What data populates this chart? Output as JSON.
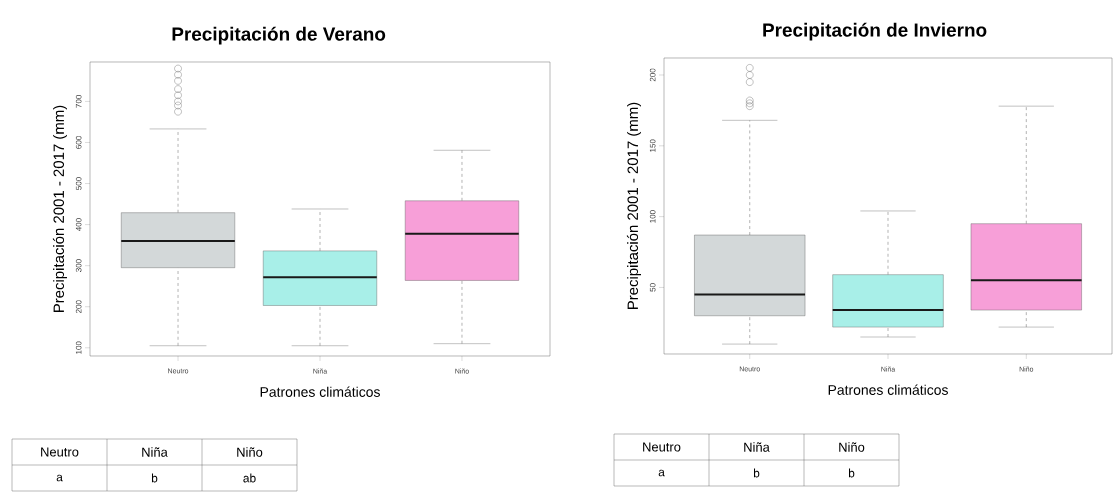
{
  "chart_data": [
    {
      "type": "box",
      "title": "Precipitación de Verano",
      "xlabel": "Patrones climáticos",
      "ylabel": "Precipitación 2001 - 2017 (mm)",
      "categories": [
        "Neutro",
        "Niña",
        "Niño"
      ],
      "colors": [
        "#d3d8d9",
        "#a8efe8",
        "#f79fd8"
      ],
      "boxes": [
        {
          "low": 105,
          "q1": 295,
          "median": 360,
          "q3": 429,
          "high": 633,
          "outliers": [
            675,
            690,
            700,
            715,
            730,
            750,
            765,
            780
          ]
        },
        {
          "low": 105,
          "q1": 203,
          "median": 272,
          "q3": 336,
          "high": 438
        },
        {
          "low": 110,
          "q1": 264,
          "median": 378,
          "q3": 458,
          "high": 581
        }
      ],
      "ylim": [
        80,
        796
      ],
      "yticks": [
        100,
        200,
        300,
        400,
        500,
        600,
        700
      ],
      "marker": "circle",
      "annotations": [
        "a",
        "b",
        "ab"
      ]
    },
    {
      "type": "box",
      "title": "Precipitación de Invierno",
      "xlabel": "Patrones climáticos",
      "ylabel": "Precipitación 2001 - 2017 (mm)",
      "categories": [
        "Neutro",
        "Niña",
        "Niño"
      ],
      "colors": [
        "#d3d8d9",
        "#a8efe8",
        "#f79fd8"
      ],
      "boxes": [
        {
          "low": 10,
          "q1": 30,
          "median": 45,
          "q3": 87,
          "high": 168,
          "outliers": [
            178,
            180,
            182,
            195,
            200,
            205
          ]
        },
        {
          "low": 15,
          "q1": 22,
          "median": 34,
          "q3": 59,
          "high": 104
        },
        {
          "low": 22,
          "q1": 34,
          "median": 55,
          "q3": 95,
          "high": 178
        }
      ],
      "ylim": [
        3,
        212
      ],
      "yticks": [
        50,
        100,
        150,
        200
      ],
      "marker": "circle",
      "annotations": [
        "a",
        "b",
        "b"
      ]
    }
  ]
}
